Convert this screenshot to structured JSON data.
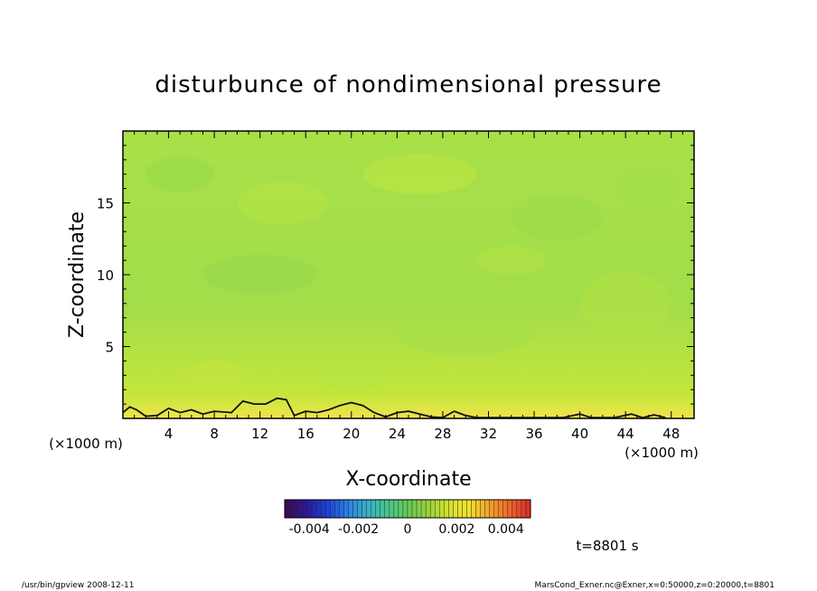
{
  "chart_data": {
    "type": "heatmap",
    "title": "disturbunce of nondimensional pressure",
    "xlabel": "X-coordinate",
    "ylabel": "Z-coordinate",
    "x_unit_left": "(×1000 m)",
    "x_unit_right": "(×1000 m)",
    "xlim": [
      0,
      50
    ],
    "ylim": [
      0,
      20
    ],
    "x_ticks": [
      4,
      8,
      12,
      16,
      20,
      24,
      28,
      32,
      36,
      40,
      44,
      48
    ],
    "y_ticks": [
      5,
      10,
      15
    ],
    "colorbar": {
      "range": [
        -0.005,
        0.005
      ],
      "tick_values": [
        -0.004,
        -0.002,
        0,
        0.002,
        0.004
      ],
      "tick_labels": [
        "-0.004",
        "-0.002",
        "0",
        "0.002",
        "0.004"
      ],
      "colors": [
        "#3c0a55",
        "#2a1a9a",
        "#1d3fd6",
        "#2a7fe6",
        "#39b0c8",
        "#45c78c",
        "#66cc55",
        "#99d23b",
        "#cfe230",
        "#f2e52a",
        "#f4a72a",
        "#ef6a2a",
        "#e0302a"
      ]
    },
    "field_color": "#9fe04a",
    "contour_near_surface_z": [
      {
        "x": 0.0,
        "z": 0.4
      },
      {
        "x": 0.6,
        "z": 0.8
      },
      {
        "x": 1.2,
        "z": 0.6
      },
      {
        "x": 2.0,
        "z": 0.15
      },
      {
        "x": 3.0,
        "z": 0.2
      },
      {
        "x": 4.0,
        "z": 0.7
      },
      {
        "x": 5.0,
        "z": 0.4
      },
      {
        "x": 6.0,
        "z": 0.6
      },
      {
        "x": 7.0,
        "z": 0.3
      },
      {
        "x": 8.0,
        "z": 0.5
      },
      {
        "x": 9.5,
        "z": 0.4
      },
      {
        "x": 10.5,
        "z": 1.2
      },
      {
        "x": 11.5,
        "z": 1.0
      },
      {
        "x": 12.5,
        "z": 1.0
      },
      {
        "x": 13.5,
        "z": 1.4
      },
      {
        "x": 14.3,
        "z": 1.3
      },
      {
        "x": 15.0,
        "z": 0.2
      },
      {
        "x": 16.0,
        "z": 0.5
      },
      {
        "x": 17.0,
        "z": 0.4
      },
      {
        "x": 18.0,
        "z": 0.6
      },
      {
        "x": 19.0,
        "z": 0.9
      },
      {
        "x": 20.0,
        "z": 1.1
      },
      {
        "x": 21.0,
        "z": 0.9
      },
      {
        "x": 22.0,
        "z": 0.4
      },
      {
        "x": 23.0,
        "z": 0.1
      },
      {
        "x": 24.0,
        "z": 0.4
      },
      {
        "x": 25.0,
        "z": 0.5
      },
      {
        "x": 26.0,
        "z": 0.3
      },
      {
        "x": 27.0,
        "z": 0.1
      },
      {
        "x": 28.0,
        "z": 0.05
      },
      {
        "x": 29.0,
        "z": 0.5
      },
      {
        "x": 30.0,
        "z": 0.2
      },
      {
        "x": 31.0,
        "z": 0.05
      },
      {
        "x": 38.5,
        "z": 0.05
      },
      {
        "x": 40.0,
        "z": 0.3
      },
      {
        "x": 41.0,
        "z": 0.05
      },
      {
        "x": 43.0,
        "z": 0.05
      },
      {
        "x": 44.5,
        "z": 0.3
      },
      {
        "x": 45.5,
        "z": 0.05
      },
      {
        "x": 46.5,
        "z": 0.25
      },
      {
        "x": 47.5,
        "z": 0.05
      }
    ],
    "time_label": "t=8801 s"
  },
  "footer": {
    "left": "/usr/bin/gpview   2008-12-11",
    "right": "MarsCond_Exner.nc@Exner,x=0:50000,z=0:20000,t=8801"
  }
}
